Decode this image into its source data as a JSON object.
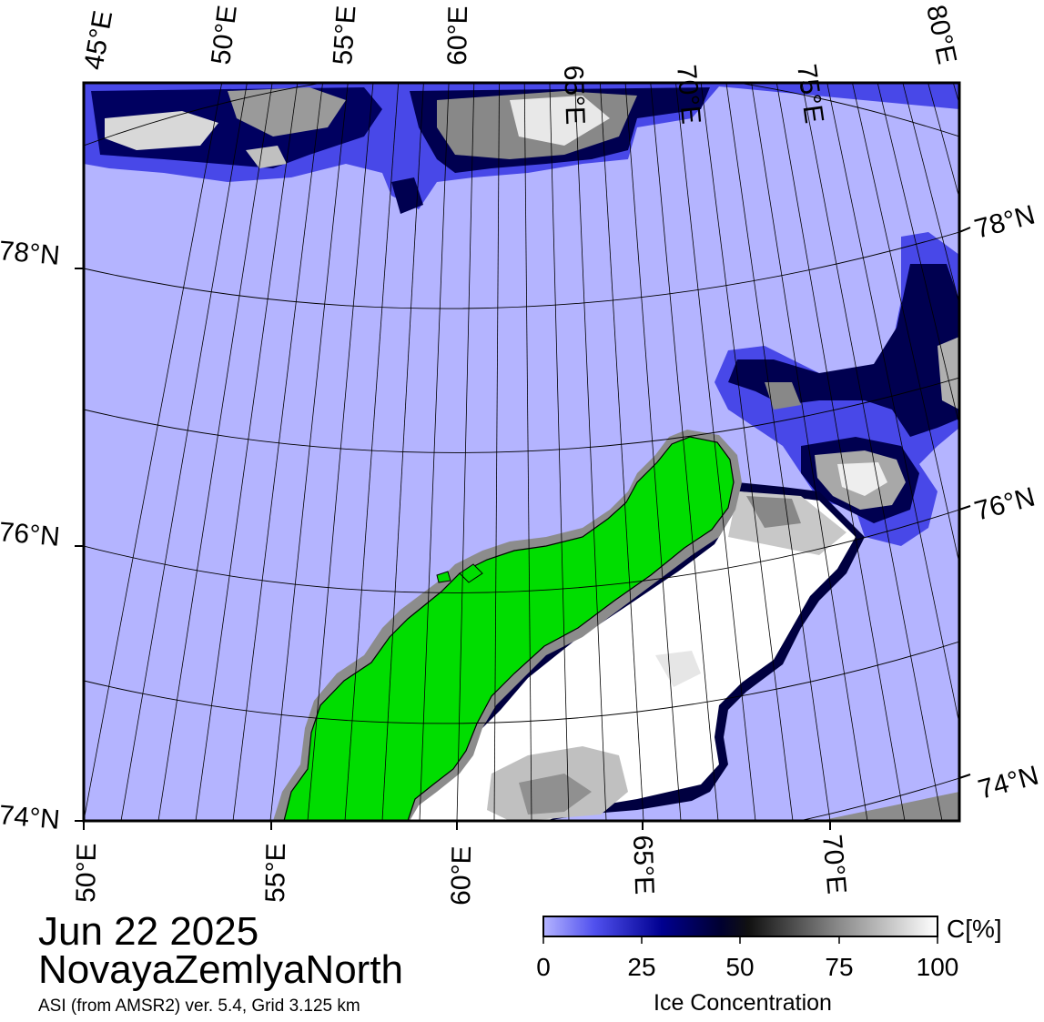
{
  "title": {
    "date": "Jun 22 2025",
    "region": "NovayaZemlyaNorth",
    "source": "ASI (from AMSR2) ver. 5.4,  Grid 3.125 km"
  },
  "axes": {
    "top_lon_labels": [
      "45°E",
      "50°E",
      "55°E",
      "60°E",
      "65°E",
      "70°E",
      "75°E",
      "80°E"
    ],
    "bottom_lon_labels": [
      "50°E",
      "55°E",
      "60°E",
      "65°E",
      "70°E"
    ],
    "left_lat_labels": [
      "78°N",
      "76°N",
      "74°N"
    ],
    "right_lat_labels": [
      "78°N",
      "76°N",
      "74°N"
    ]
  },
  "colorbar": {
    "ticks": [
      "0",
      "25",
      "50",
      "75",
      "100"
    ],
    "unit": "C[%]",
    "label": "Ice Concentration"
  },
  "colors": {
    "open_water": "#b4b4ff",
    "land": "#00dd00",
    "coast_fill": "#8c8c8c",
    "ice_low": "#5050ee",
    "ice_mid": "#000050",
    "ice_high": "#ffffff"
  }
}
